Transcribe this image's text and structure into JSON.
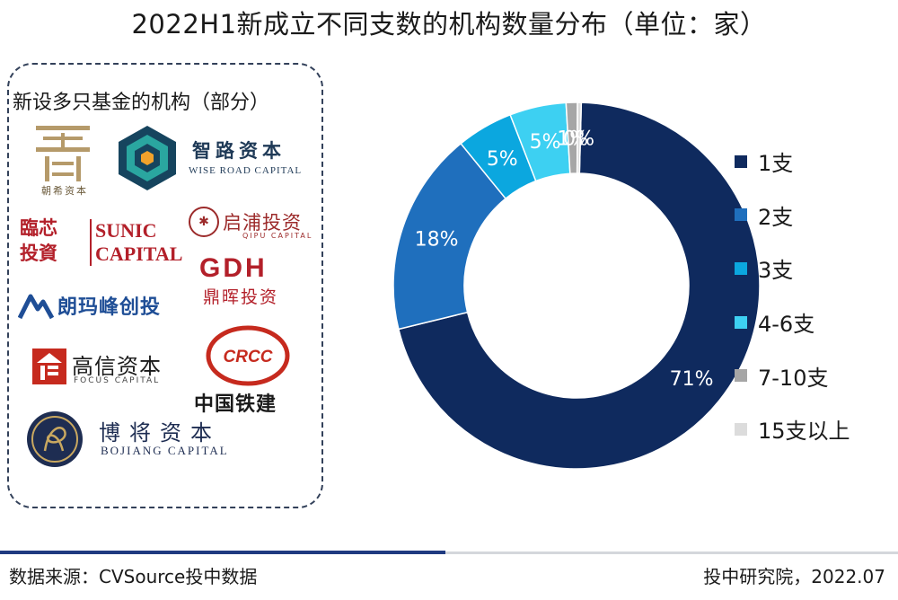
{
  "chart_data": {
    "type": "pie",
    "title": "2022H1新成立不同支数的机构数量分布（单位：家）",
    "donut": true,
    "categories": [
      "1支",
      "2支",
      "3支",
      "4-6支",
      "7-10支",
      "15支以上"
    ],
    "values": [
      71,
      18,
      5,
      5,
      1,
      0
    ],
    "data_labels": [
      "71%",
      "18%",
      "5%",
      "5%",
      "1%",
      "0%"
    ],
    "colors": [
      "#0f2a5e",
      "#1f6fbd",
      "#0ba7df",
      "#3dd0f2",
      "#a6a6a6",
      "#dcdcdc"
    ],
    "legend_position": "right"
  },
  "panel": {
    "title": "新设多只基金的机构（部分）",
    "logos": {
      "chaoxi": "朝希资本",
      "wiseroad_cn": "智路资本",
      "wiseroad_en": "WISE ROAD CAPITAL",
      "linhua_1": "臨芯",
      "linhua_2": "投資",
      "sunic_1": "SUNIC",
      "sunic_2": "CAPITAL",
      "qipu_cn": "启浦投资",
      "qipu_en": "QIPU CAPITAL",
      "gdh_en": "GDH",
      "gdh_cn": "鼎晖投资",
      "langma": "朗玛峰创投",
      "gaoxin_cn": "高信资本",
      "gaoxin_en": "FOCUS CAPITAL",
      "crcc_en": "CRCC",
      "crcc_cn": "中国铁建",
      "bojiang_cn": "博将资本",
      "bojiang_en": "BOJIANG CAPITAL"
    }
  },
  "footer": {
    "source": "数据来源：CVSource投中数据",
    "credit": "投中研究院，2022.07"
  }
}
